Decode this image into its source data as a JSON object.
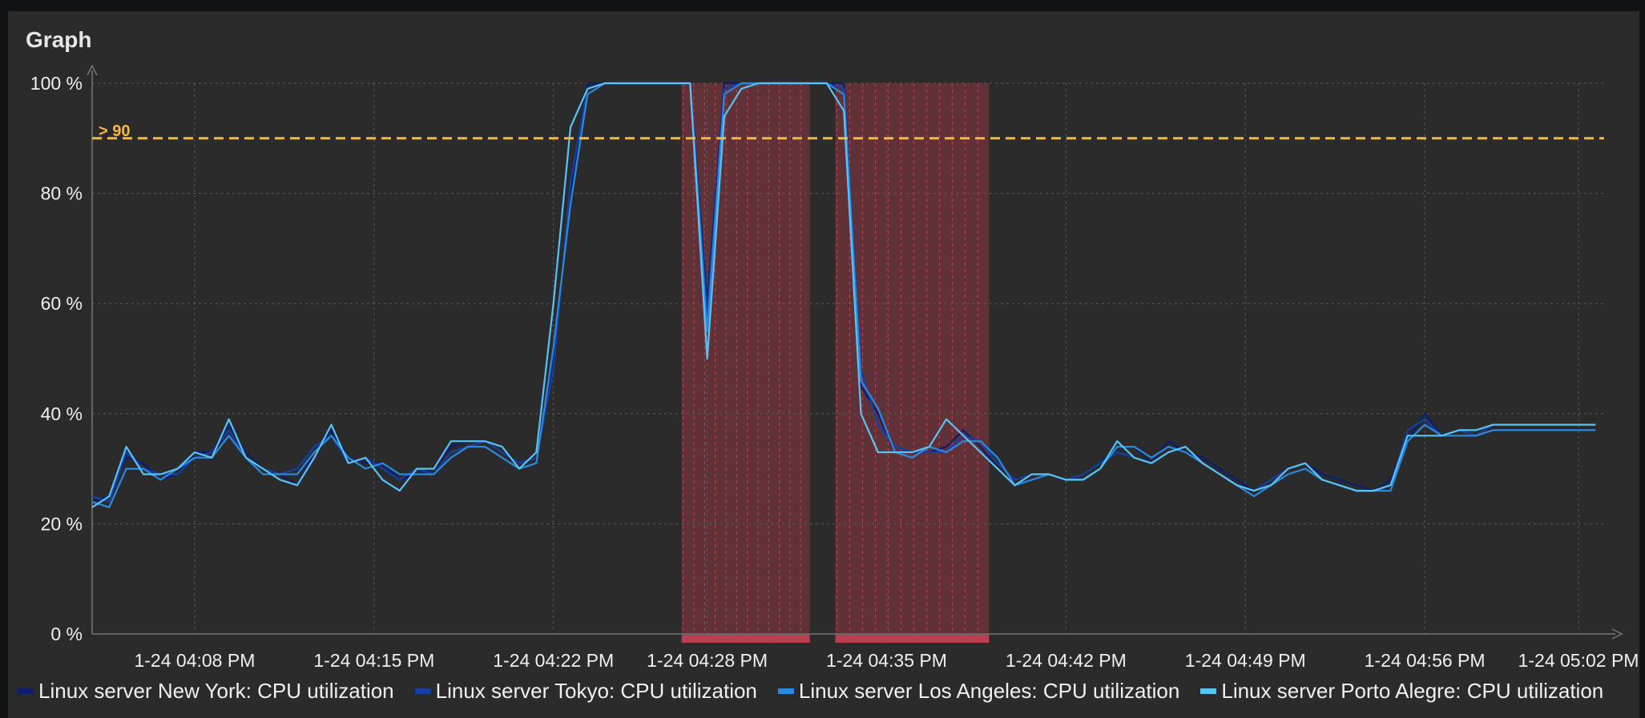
{
  "panel": {
    "title": "Graph"
  },
  "threshold": {
    "label": "> 90",
    "value": 90,
    "color": "#f6b93b"
  },
  "problem_color": "#b94050",
  "chart_data": {
    "type": "line",
    "title": "Graph",
    "ylim": [
      0,
      100
    ],
    "y_ticks": [
      0,
      20,
      40,
      60,
      80,
      100
    ],
    "y_tick_labels": [
      "0 %",
      "20 %",
      "40 %",
      "60 %",
      "80 %",
      "100 %"
    ],
    "x_range": [
      "16:04",
      "17:03"
    ],
    "x_ticks": [
      "16:08",
      "16:15",
      "16:22",
      "16:28",
      "16:35",
      "16:42",
      "16:49",
      "16:56",
      "17:02"
    ],
    "x_tick_labels": [
      "1-24 04:08 PM",
      "1-24 04:15 PM",
      "1-24 04:22 PM",
      "1-24 04:28 PM",
      "1-24 04:35 PM",
      "1-24 04:42 PM",
      "1-24 04:49 PM",
      "1-24 04:56 PM",
      "1-24 05:02 PM"
    ],
    "grid": true,
    "legend_position": "bottom",
    "problem_periods": [
      [
        "16:27",
        "16:32"
      ],
      [
        "16:33",
        "16:39"
      ]
    ],
    "x": [
      "16:04:00",
      "16:04:40",
      "16:05:20",
      "16:06:00",
      "16:06:40",
      "16:07:20",
      "16:08:00",
      "16:08:40",
      "16:09:20",
      "16:10:00",
      "16:10:40",
      "16:11:20",
      "16:12:00",
      "16:12:40",
      "16:13:20",
      "16:14:00",
      "16:14:40",
      "16:15:20",
      "16:16:00",
      "16:16:40",
      "16:17:20",
      "16:18:00",
      "16:18:40",
      "16:19:20",
      "16:20:00",
      "16:20:40",
      "16:21:20",
      "16:22:00",
      "16:22:40",
      "16:23:20",
      "16:24:00",
      "16:24:40",
      "16:25:20",
      "16:26:00",
      "16:26:40",
      "16:27:20",
      "16:28:00",
      "16:28:40",
      "16:29:20",
      "16:30:00",
      "16:30:40",
      "16:31:20",
      "16:32:00",
      "16:32:40",
      "16:33:20",
      "16:34:00",
      "16:34:40",
      "16:35:20",
      "16:36:00",
      "16:36:40",
      "16:37:20",
      "16:38:00",
      "16:38:40",
      "16:39:20",
      "16:40:00",
      "16:40:40",
      "16:41:20",
      "16:42:00",
      "16:42:40",
      "16:43:20",
      "16:44:00",
      "16:44:40",
      "16:45:20",
      "16:46:00",
      "16:46:40",
      "16:47:20",
      "16:48:00",
      "16:48:40",
      "16:49:20",
      "16:50:00",
      "16:50:40",
      "16:51:20",
      "16:52:00",
      "16:52:40",
      "16:53:20",
      "16:54:00",
      "16:54:40",
      "16:55:20",
      "16:56:00",
      "16:56:40",
      "16:57:20",
      "16:58:00",
      "16:58:40",
      "16:59:20",
      "17:00:00",
      "17:00:40",
      "17:01:20",
      "17:02:00",
      "17:02:40"
    ],
    "series": [
      {
        "name": "Linux server New York: CPU utilization",
        "color": "#0a1f6e",
        "values": [
          24,
          25,
          32,
          31,
          28,
          29,
          33,
          33,
          38,
          33,
          30,
          29,
          27,
          33,
          37,
          32,
          31,
          31,
          28,
          29,
          30,
          34,
          35,
          35,
          33,
          31,
          32,
          50,
          80,
          100,
          100,
          100,
          100,
          100,
          100,
          100,
          60,
          100,
          100,
          100,
          100,
          100,
          100,
          100,
          100,
          45,
          40,
          33,
          33,
          33,
          34,
          37,
          34,
          30,
          27,
          28,
          29,
          28,
          29,
          31,
          34,
          34,
          31,
          35,
          33,
          32,
          30,
          28,
          26,
          27,
          30,
          31,
          29,
          28,
          27,
          26,
          28,
          35,
          40,
          36,
          37,
          37,
          38,
          38,
          38,
          38,
          38,
          38,
          38
        ]
      },
      {
        "name": "Linux server Tokyo: CPU utilization",
        "color": "#1440a6",
        "values": [
          25,
          24,
          33,
          30,
          29,
          29,
          32,
          33,
          37,
          32,
          30,
          29,
          30,
          34,
          36,
          31,
          32,
          30,
          28,
          30,
          29,
          33,
          34,
          35,
          33,
          31,
          32,
          48,
          82,
          99,
          100,
          100,
          100,
          100,
          100,
          100,
          58,
          99,
          100,
          100,
          100,
          100,
          100,
          100,
          99,
          48,
          38,
          34,
          33,
          33,
          33,
          36,
          35,
          31,
          28,
          29,
          29,
          28,
          29,
          31,
          33,
          32,
          31,
          33,
          34,
          31,
          29,
          27,
          26,
          28,
          30,
          31,
          28,
          27,
          26,
          26,
          27,
          37,
          39,
          36,
          37,
          36,
          38,
          38,
          38,
          38,
          38,
          38,
          38
        ]
      },
      {
        "name": "Linux server Los Angeles: CPU utilization",
        "color": "#2a8ae0",
        "values": [
          24,
          23,
          30,
          30,
          28,
          30,
          32,
          32,
          36,
          32,
          29,
          29,
          29,
          33,
          36,
          32,
          30,
          31,
          29,
          29,
          29,
          32,
          34,
          34,
          32,
          30,
          31,
          52,
          78,
          98,
          100,
          100,
          100,
          100,
          100,
          100,
          55,
          98,
          100,
          100,
          100,
          100,
          100,
          100,
          98,
          46,
          41,
          33,
          32,
          34,
          33,
          35,
          35,
          32,
          27,
          28,
          29,
          28,
          28,
          30,
          34,
          34,
          32,
          34,
          33,
          31,
          29,
          27,
          25,
          27,
          29,
          30,
          28,
          27,
          26,
          26,
          26,
          35,
          38,
          36,
          36,
          36,
          37,
          37,
          37,
          37,
          37,
          37,
          37
        ]
      },
      {
        "name": "Linux server Porto Alegre: CPU utilization",
        "color": "#59c3f6",
        "values": [
          23,
          25,
          34,
          29,
          29,
          30,
          33,
          32,
          39,
          32,
          30,
          28,
          27,
          32,
          38,
          31,
          32,
          28,
          26,
          30,
          30,
          35,
          35,
          35,
          34,
          30,
          33,
          60,
          92,
          99,
          100,
          100,
          100,
          100,
          100,
          100,
          50,
          94,
          99,
          100,
          100,
          100,
          100,
          100,
          95,
          40,
          33,
          33,
          33,
          34,
          39,
          36,
          33,
          30,
          27,
          29,
          29,
          28,
          28,
          30,
          35,
          32,
          31,
          33,
          34,
          31,
          29,
          27,
          26,
          27,
          30,
          31,
          28,
          27,
          26,
          26,
          27,
          36,
          36,
          36,
          37,
          37,
          38,
          38,
          38,
          38,
          38,
          38,
          38
        ]
      }
    ]
  },
  "legend": [
    {
      "label": "Linux server New York: CPU utilization",
      "color": "#0a1f6e"
    },
    {
      "label": "Linux server Tokyo: CPU utilization",
      "color": "#1440a6"
    },
    {
      "label": "Linux server Los Angeles: CPU utilization",
      "color": "#2a8ae0"
    },
    {
      "label": "Linux server Porto Alegre: CPU utilization",
      "color": "#59c3f6"
    }
  ]
}
